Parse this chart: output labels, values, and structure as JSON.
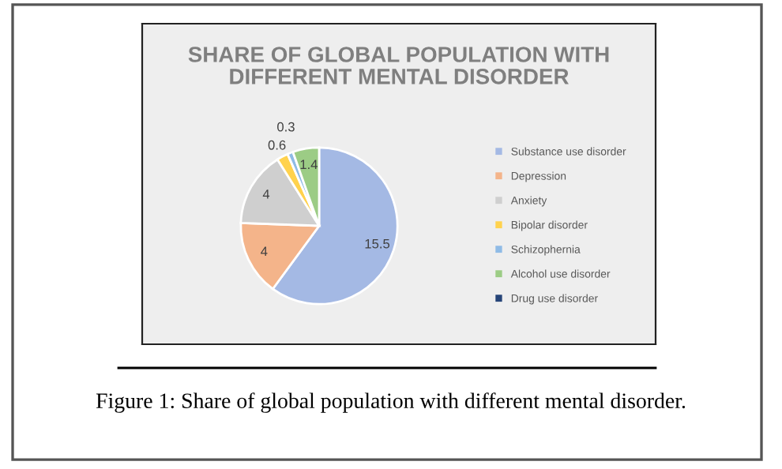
{
  "chart_data": {
    "type": "pie",
    "title": "SHARE OF GLOBAL POPULATION WITH\nDIFFERENT MENTAL DISORDER",
    "categories": [
      "Substance use disorder",
      "Depression",
      "Anxiety",
      "Bipolar disorder",
      "Schizophernia",
      "Alcohol use disorder",
      "Drug use disorder"
    ],
    "values": [
      15.5,
      4,
      4,
      0.6,
      0.3,
      1.4,
      null
    ],
    "colors": [
      "#a4b9e4",
      "#f4b48a",
      "#cfcfcf",
      "#ffd24d",
      "#8fbbe6",
      "#9ccc85",
      "#264478"
    ],
    "data_labels": true,
    "legend": "right",
    "annotations": [
      "Figure 1: Share of global population with different mental disorder."
    ]
  }
}
